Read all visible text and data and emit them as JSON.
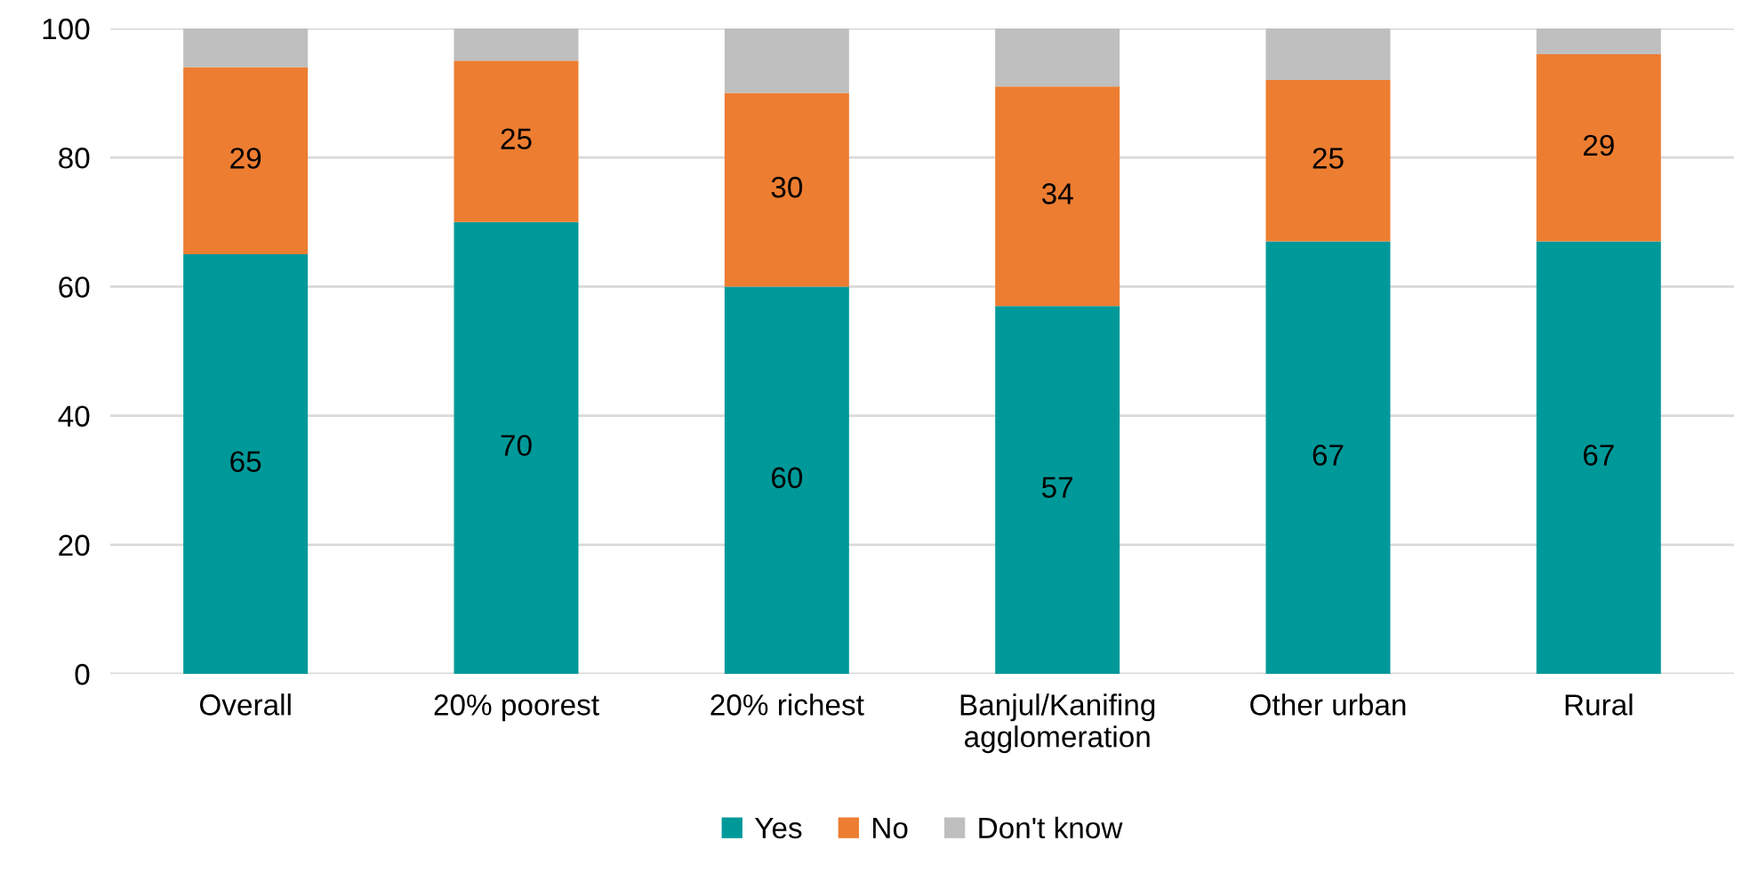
{
  "chart_data": {
    "type": "bar",
    "stacked": true,
    "categories": [
      "Overall",
      "20% poorest",
      "20% richest",
      "Banjul/Kanifing agglomeration",
      "Other urban",
      "Rural"
    ],
    "series": [
      {
        "name": "Yes",
        "color": "#009999",
        "values": [
          65,
          70,
          60,
          57,
          67,
          67
        ],
        "value_labels": [
          "65",
          "70",
          "60",
          "57",
          "67",
          "67"
        ]
      },
      {
        "name": "No",
        "color": "#ed7d31",
        "values": [
          29,
          25,
          30,
          34,
          25,
          29
        ],
        "value_labels": [
          "29",
          "25",
          "30",
          "34",
          "25",
          "29"
        ]
      },
      {
        "name": "Don't know",
        "color": "#bfbfbf",
        "values": [
          6,
          5,
          10,
          9,
          8,
          4
        ]
      }
    ],
    "ylim": [
      0,
      100
    ],
    "yticks": [
      0,
      20,
      40,
      60,
      80,
      100
    ],
    "grid": "y",
    "legend": "bottom"
  }
}
